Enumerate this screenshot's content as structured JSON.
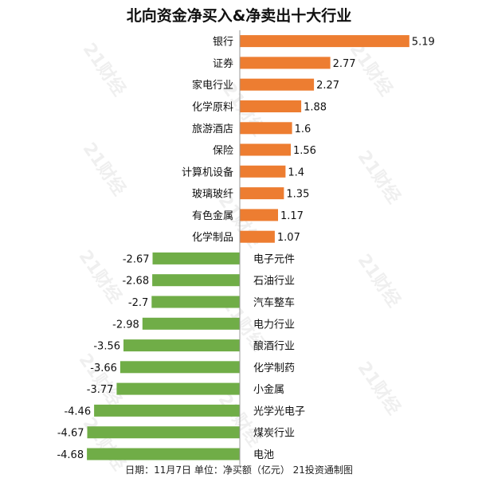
{
  "chart_data": {
    "type": "bar",
    "orientation": "horizontal",
    "title": "北向资金净买入&净卖出十大行业",
    "categories": [
      "银行",
      "证券",
      "家电行业",
      "化学原料",
      "旅游酒店",
      "保险",
      "计算机设备",
      "玻璃玻纤",
      "有色金属",
      "化学制品",
      "电子元件",
      "石油行业",
      "汽车整车",
      "电力行业",
      "酿酒行业",
      "化学制药",
      "小金属",
      "光学光电子",
      "煤炭行业",
      "电池"
    ],
    "values": [
      5.19,
      2.77,
      2.27,
      1.88,
      1.6,
      1.56,
      1.4,
      1.35,
      1.17,
      1.07,
      -2.67,
      -2.68,
      -2.7,
      -2.98,
      -3.56,
      -3.66,
      -3.77,
      -4.46,
      -4.67,
      -4.68
    ],
    "value_labels": [
      "5.19",
      "2.77",
      "2.27",
      "1.88",
      "1.6",
      "1.56",
      "1.4",
      "1.35",
      "1.17",
      "1.07",
      "-2.67",
      "-2.68",
      "-2.7",
      "-2.98",
      "-3.56",
      "-3.66",
      "-3.77",
      "-4.46",
      "-4.67",
      "-4.68"
    ],
    "positive_color": "#ED7D31",
    "negative_color": "#70AD47",
    "grid": false,
    "legend": "none",
    "footer": "日期：11月7日 单位：净买额（亿元） 21投资通制图"
  },
  "watermark": "21财经"
}
